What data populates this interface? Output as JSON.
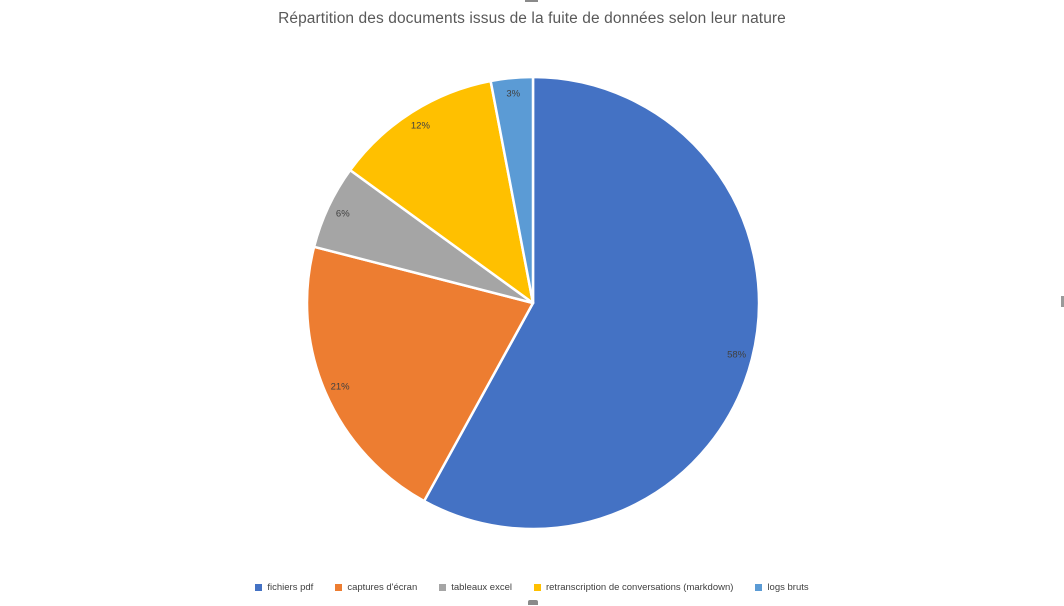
{
  "chart_data": {
    "type": "pie",
    "title": "Répartition des documents issus de la fuite de données selon leur nature",
    "categories": [
      "fichiers pdf",
      "captures d'écran",
      "tableaux excel",
      "retranscription de conversations (markdown)",
      "logs bruts"
    ],
    "values": [
      58,
      21,
      6,
      12,
      3
    ],
    "data_labels": [
      "58%",
      "21%",
      "6%",
      "12%",
      "3%"
    ],
    "colors": [
      "#4472C4",
      "#ED7D31",
      "#A5A5A5",
      "#FFC000",
      "#5B9BD5"
    ],
    "start_angle_deg": 0,
    "direction": "clockwise",
    "legend_position": "bottom",
    "slice_border_color": "#FFFFFF",
    "title_color": "#595959",
    "label_color": "#404040",
    "background_color": "#FFFFFF"
  }
}
